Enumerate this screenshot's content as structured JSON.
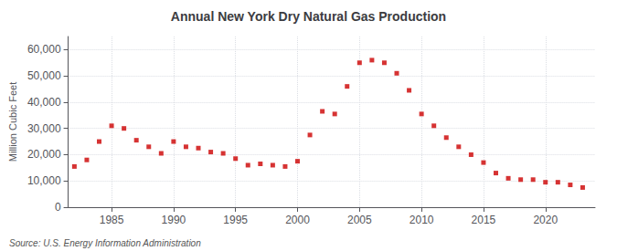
{
  "chart_data": {
    "type": "scatter",
    "title": "Annual New York Dry Natural Gas Production",
    "ylabel": "Million Cubic Feet",
    "annotation": "Source: U.S. Energy Information Administration",
    "x": [
      1982,
      1983,
      1984,
      1985,
      1986,
      1987,
      1988,
      1989,
      1990,
      1991,
      1992,
      1993,
      1994,
      1995,
      1996,
      1997,
      1998,
      1999,
      2000,
      2001,
      2002,
      2003,
      2004,
      2005,
      2006,
      2007,
      2008,
      2009,
      2010,
      2011,
      2012,
      2013,
      2014,
      2015,
      2016,
      2017,
      2018,
      2019,
      2020,
      2021,
      2022,
      2023
    ],
    "values": [
      15500,
      18000,
      25000,
      31000,
      30000,
      25500,
      23000,
      20500,
      25000,
      23000,
      22500,
      21000,
      20500,
      18500,
      16000,
      16500,
      16000,
      15500,
      17500,
      27500,
      36500,
      35500,
      46000,
      55000,
      56000,
      55000,
      51000,
      44500,
      35500,
      31000,
      26500,
      23000,
      20000,
      17000,
      13000,
      11000,
      10500,
      10500,
      9500,
      9500,
      8500,
      7500
    ],
    "color": "#cc0000",
    "marker": "square",
    "xlim": [
      1981.5,
      2024
    ],
    "xticks": [
      1985,
      1990,
      1995,
      2000,
      2005,
      2010,
      2015,
      2020
    ],
    "ylim": [
      0,
      65000
    ],
    "yticks": [
      0,
      {
        "value": 10000,
        "label": "10,000"
      },
      {
        "value": 20000,
        "label": "20,000"
      },
      {
        "value": 30000,
        "label": "30,000"
      },
      {
        "value": 40000,
        "label": "40,000"
      },
      {
        "value": 50000,
        "label": "50,000"
      },
      {
        "value": 60000,
        "label": "60,000"
      }
    ],
    "grid": true
  }
}
